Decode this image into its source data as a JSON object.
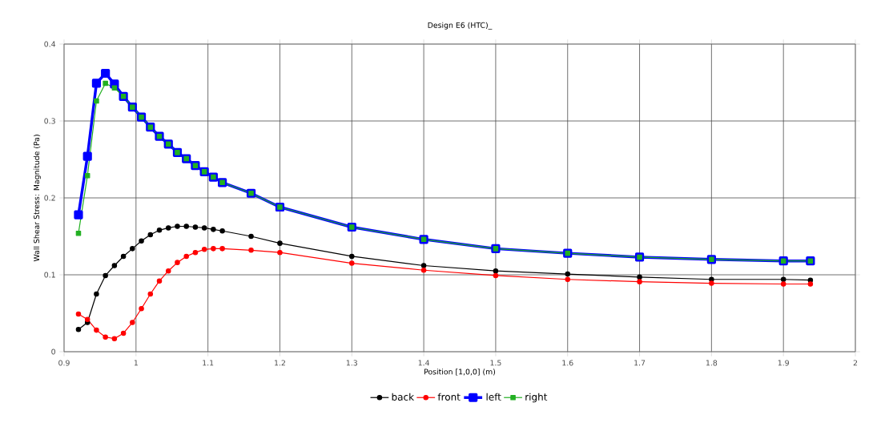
{
  "chart_data": {
    "type": "line",
    "title": "Design E6 (HTC)_",
    "xlabel": "Position [1,0,0] (m)",
    "ylabel": "Wall Shear Stress: Magnitude (Pa)",
    "x": [
      0.92,
      0.9325,
      0.945,
      0.9575,
      0.97,
      0.9825,
      0.995,
      1.0075,
      1.02,
      1.0325,
      1.045,
      1.0575,
      1.07,
      1.0825,
      1.095,
      1.1075,
      1.12,
      1.16,
      1.2,
      1.3,
      1.4,
      1.5,
      1.6,
      1.7,
      1.8,
      1.9,
      1.9375
    ],
    "series": [
      {
        "name": "back",
        "color": "#000000",
        "marker": "circle",
        "values": [
          0.029,
          0.038,
          0.075,
          0.099,
          0.112,
          0.124,
          0.134,
          0.144,
          0.152,
          0.158,
          0.161,
          0.163,
          0.163,
          0.162,
          0.161,
          0.159,
          0.157,
          0.15,
          0.141,
          0.124,
          0.112,
          0.105,
          0.101,
          0.097,
          0.094,
          0.094,
          0.093
        ]
      },
      {
        "name": "front",
        "color": "#ff0000",
        "marker": "circle",
        "values": [
          0.049,
          0.042,
          0.028,
          0.019,
          0.017,
          0.024,
          0.038,
          0.056,
          0.075,
          0.092,
          0.105,
          0.116,
          0.124,
          0.129,
          0.133,
          0.134,
          0.134,
          0.132,
          0.129,
          0.115,
          0.106,
          0.099,
          0.094,
          0.091,
          0.089,
          0.088,
          0.088
        ]
      },
      {
        "name": "left",
        "color": "#0000ff",
        "marker": "square",
        "values": [
          0.178,
          0.254,
          0.349,
          0.362,
          0.348,
          0.332,
          0.318,
          0.305,
          0.292,
          0.28,
          0.27,
          0.259,
          0.251,
          0.242,
          0.234,
          0.227,
          0.22,
          0.206,
          0.188,
          0.162,
          0.146,
          0.134,
          0.128,
          0.123,
          0.12,
          0.118,
          0.118
        ]
      },
      {
        "name": "right",
        "color": "#22b022",
        "marker": "square",
        "values": [
          0.154,
          0.229,
          0.326,
          0.349,
          0.343,
          0.332,
          0.318,
          0.305,
          0.292,
          0.28,
          0.27,
          0.259,
          0.251,
          0.242,
          0.234,
          0.227,
          0.22,
          0.206,
          0.188,
          0.162,
          0.146,
          0.134,
          0.128,
          0.123,
          0.12,
          0.118,
          0.118
        ]
      }
    ],
    "xlim": [
      0.9,
      2
    ],
    "ylim": [
      0,
      0.4
    ],
    "xticks": [
      0.9,
      1,
      1.1,
      1.2,
      1.3,
      1.4,
      1.5,
      1.6,
      1.7,
      1.8,
      1.9,
      2
    ],
    "yticks": [
      0,
      0.1,
      0.2,
      0.3,
      0.4
    ],
    "grid": true,
    "legend": "bottom",
    "line_style": "solid"
  }
}
